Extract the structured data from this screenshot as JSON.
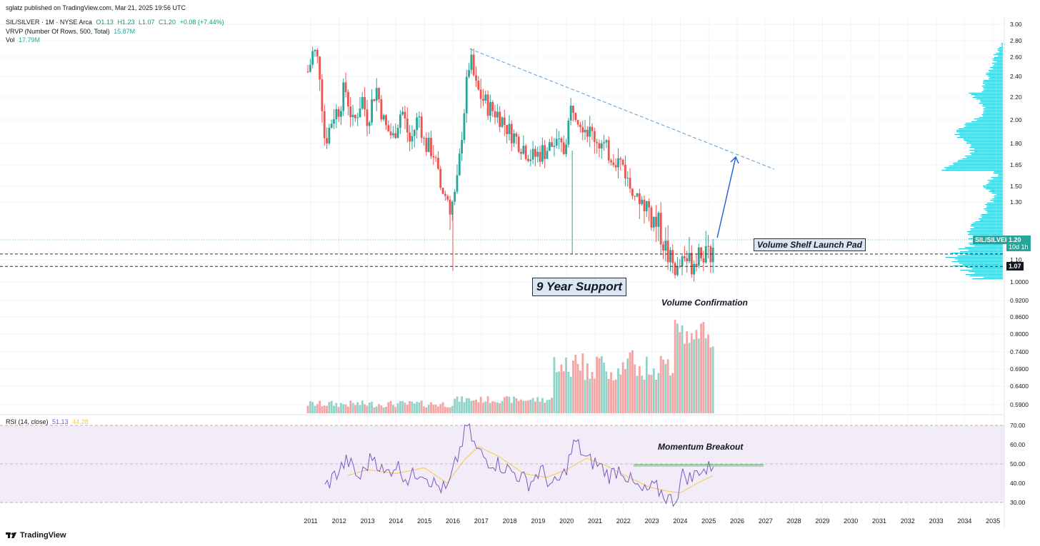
{
  "header": {
    "published": "sglatz published on TradingView.com, Mar 21, 2025 19:56 UTC",
    "symbol": "SIL/SILVER · 1M · NYSE Arca",
    "open": "O1.13",
    "high": "H1.23",
    "low": "L1.07",
    "close": "C1.20",
    "change": "+0.08 (+7.44%)",
    "vrvp_label": "VRVP (Number Of Rows, 500, Total)",
    "vrvp_value": "15.87M",
    "vol_label": "Vol",
    "vol_value": "17.79M",
    "rsi_label": "RSI (14, close)",
    "rsi_value": "51.13",
    "rsi_ma": "44.28"
  },
  "annotations": {
    "volume_shelf": "Volume Shelf Launch Pad",
    "support": "9 Year Support",
    "volume_confirmation": "Volume Confirmation",
    "momentum": "Momentum Breakout"
  },
  "price_tags": {
    "symbol": "SIL/SILVER",
    "last": "1.20",
    "countdown": "10d 1h",
    "support_level": "1.07"
  },
  "footer": {
    "brand": "TradingView",
    "logo_icon": "tradingview-logo-icon"
  },
  "colors": {
    "up": "#26a69a",
    "down": "#ef5350",
    "vol_up": "#8fd3c9",
    "vol_down": "#f4a5a3",
    "vrvp": "#26c6da",
    "rsi_line": "#7e57c2",
    "rsi_ma": "#f7c948",
    "trendline": "#5b9bd5",
    "arrow": "#1e5bd8"
  },
  "chart_data": {
    "type": "candlestick",
    "timeframe": "1M",
    "x_ticks": [
      "2011",
      "2012",
      "2013",
      "2014",
      "2015",
      "2016",
      "2017",
      "2018",
      "2019",
      "2020",
      "2021",
      "2022",
      "2023",
      "2024",
      "2025",
      "2026",
      "2027",
      "2028",
      "2029",
      "2030",
      "2031",
      "2032",
      "2033",
      "2034",
      "2035"
    ],
    "price_ticks": [
      "3.00",
      "2.80",
      "2.60",
      "2.40",
      "2.20",
      "2.00",
      "1.80",
      "1.65",
      "1.50",
      "1.30",
      "1.10",
      "1.0000",
      "0.9200",
      "0.8600",
      "0.8000",
      "0.7400",
      "0.6900",
      "0.6400",
      "0.5900"
    ],
    "rsi_ticks": [
      "70.00",
      "60.00",
      "50.00",
      "40.00",
      "30.00"
    ],
    "price_points": [
      {
        "t": 2010.9,
        "p": 2.45
      },
      {
        "t": 2011.0,
        "p": 2.55
      },
      {
        "t": 2011.1,
        "p": 2.7
      },
      {
        "t": 2011.3,
        "p": 2.5
      },
      {
        "t": 2011.5,
        "p": 1.8
      },
      {
        "t": 2011.8,
        "p": 2.05
      },
      {
        "t": 2012.0,
        "p": 2.1
      },
      {
        "t": 2012.2,
        "p": 2.3
      },
      {
        "t": 2012.5,
        "p": 1.95
      },
      {
        "t": 2012.8,
        "p": 2.2
      },
      {
        "t": 2013.0,
        "p": 2.0
      },
      {
        "t": 2013.3,
        "p": 2.3
      },
      {
        "t": 2013.6,
        "p": 1.95
      },
      {
        "t": 2013.9,
        "p": 1.85
      },
      {
        "t": 2014.2,
        "p": 2.1
      },
      {
        "t": 2014.5,
        "p": 1.8
      },
      {
        "t": 2014.8,
        "p": 2.05
      },
      {
        "t": 2015.0,
        "p": 1.8
      },
      {
        "t": 2015.3,
        "p": 1.75
      },
      {
        "t": 2015.6,
        "p": 1.45
      },
      {
        "t": 2015.9,
        "p": 1.3
      },
      {
        "t": 2016.0,
        "p": 1.3
      },
      {
        "t": 2016.2,
        "p": 1.6
      },
      {
        "t": 2016.4,
        "p": 2.1
      },
      {
        "t": 2016.6,
        "p": 2.6
      },
      {
        "t": 2016.8,
        "p": 2.3
      },
      {
        "t": 2017.0,
        "p": 2.2
      },
      {
        "t": 2017.3,
        "p": 2.1
      },
      {
        "t": 2017.6,
        "p": 2.05
      },
      {
        "t": 2018.0,
        "p": 1.9
      },
      {
        "t": 2018.4,
        "p": 1.8
      },
      {
        "t": 2018.8,
        "p": 1.7
      },
      {
        "t": 2019.2,
        "p": 1.75
      },
      {
        "t": 2019.6,
        "p": 1.8
      },
      {
        "t": 2019.9,
        "p": 1.75
      },
      {
        "t": 2020.2,
        "p": 2.15
      },
      {
        "t": 2020.5,
        "p": 2.0
      },
      {
        "t": 2020.8,
        "p": 1.9
      },
      {
        "t": 2021.0,
        "p": 1.85
      },
      {
        "t": 2021.4,
        "p": 1.75
      },
      {
        "t": 2021.7,
        "p": 1.7
      },
      {
        "t": 2022.0,
        "p": 1.65
      },
      {
        "t": 2022.2,
        "p": 1.5
      },
      {
        "t": 2022.5,
        "p": 1.35
      },
      {
        "t": 2022.8,
        "p": 1.3
      },
      {
        "t": 2023.0,
        "p": 1.25
      },
      {
        "t": 2023.3,
        "p": 1.2
      },
      {
        "t": 2023.6,
        "p": 1.1
      },
      {
        "t": 2023.9,
        "p": 1.05
      },
      {
        "t": 2024.1,
        "p": 1.12
      },
      {
        "t": 2024.4,
        "p": 1.08
      },
      {
        "t": 2024.7,
        "p": 1.15
      },
      {
        "t": 2024.9,
        "p": 1.1
      },
      {
        "t": 2025.1,
        "p": 1.12
      },
      {
        "t": 2025.2,
        "p": 1.2
      }
    ],
    "rsi_points": [
      {
        "t": 2011.5,
        "v": 38
      },
      {
        "t": 2011.9,
        "v": 45
      },
      {
        "t": 2012.3,
        "v": 52
      },
      {
        "t": 2012.7,
        "v": 42
      },
      {
        "t": 2013.2,
        "v": 55
      },
      {
        "t": 2013.6,
        "v": 44
      },
      {
        "t": 2014.0,
        "v": 50
      },
      {
        "t": 2014.4,
        "v": 42
      },
      {
        "t": 2014.9,
        "v": 47
      },
      {
        "t": 2015.3,
        "v": 40
      },
      {
        "t": 2015.8,
        "v": 36
      },
      {
        "t": 2016.2,
        "v": 55
      },
      {
        "t": 2016.5,
        "v": 70
      },
      {
        "t": 2016.8,
        "v": 58
      },
      {
        "t": 2017.2,
        "v": 52
      },
      {
        "t": 2017.6,
        "v": 50
      },
      {
        "t": 2018.2,
        "v": 45
      },
      {
        "t": 2018.7,
        "v": 40
      },
      {
        "t": 2019.1,
        "v": 47
      },
      {
        "t": 2019.5,
        "v": 38
      },
      {
        "t": 2019.9,
        "v": 44
      },
      {
        "t": 2020.3,
        "v": 62
      },
      {
        "t": 2020.7,
        "v": 52
      },
      {
        "t": 2021.1,
        "v": 50
      },
      {
        "t": 2021.5,
        "v": 44
      },
      {
        "t": 2021.9,
        "v": 48
      },
      {
        "t": 2022.3,
        "v": 40
      },
      {
        "t": 2022.7,
        "v": 35
      },
      {
        "t": 2023.1,
        "v": 38
      },
      {
        "t": 2023.5,
        "v": 33
      },
      {
        "t": 2023.8,
        "v": 30
      },
      {
        "t": 2024.1,
        "v": 45
      },
      {
        "t": 2024.4,
        "v": 42
      },
      {
        "t": 2024.7,
        "v": 48
      },
      {
        "t": 2024.9,
        "v": 46
      },
      {
        "t": 2025.2,
        "v": 51
      }
    ],
    "rsi_ma_points": [
      {
        "t": 2012.3,
        "v": 44
      },
      {
        "t": 2013.0,
        "v": 47
      },
      {
        "t": 2014.0,
        "v": 45
      },
      {
        "t": 2015.0,
        "v": 48
      },
      {
        "t": 2015.8,
        "v": 40
      },
      {
        "t": 2016.4,
        "v": 52
      },
      {
        "t": 2016.9,
        "v": 59
      },
      {
        "t": 2017.6,
        "v": 54
      },
      {
        "t": 2018.5,
        "v": 45
      },
      {
        "t": 2019.3,
        "v": 43
      },
      {
        "t": 2020.0,
        "v": 47
      },
      {
        "t": 2020.7,
        "v": 53
      },
      {
        "t": 2021.4,
        "v": 49
      },
      {
        "t": 2022.2,
        "v": 43
      },
      {
        "t": 2022.9,
        "v": 38
      },
      {
        "t": 2023.5,
        "v": 36
      },
      {
        "t": 2024.0,
        "v": 35
      },
      {
        "t": 2024.6,
        "v": 40
      },
      {
        "t": 2025.2,
        "v": 44.28
      }
    ],
    "support_levels": [
      1.07,
      1.12
    ],
    "rsi_breakout_level": 50
  }
}
